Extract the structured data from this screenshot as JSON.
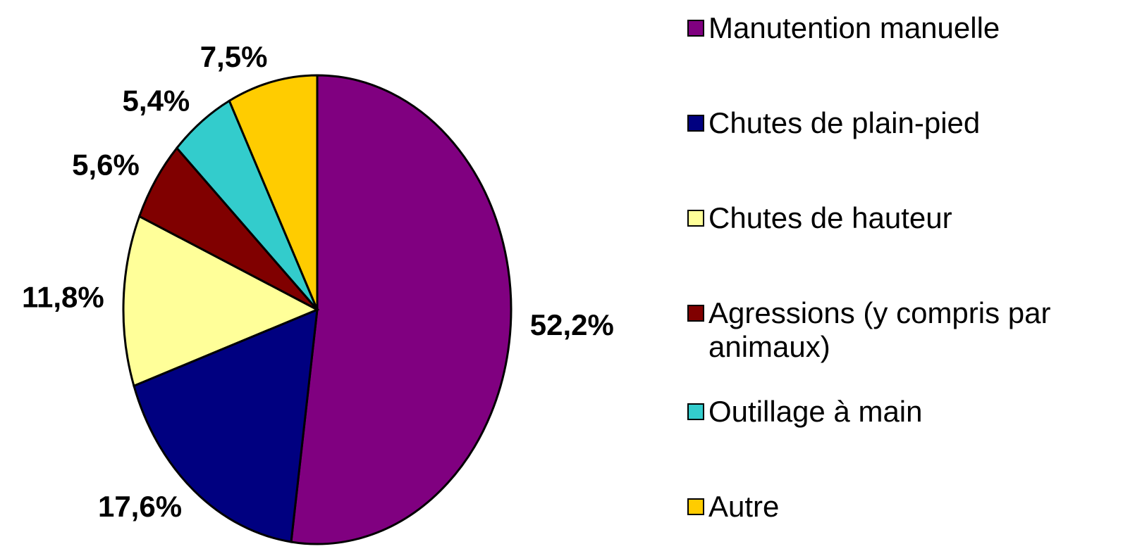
{
  "chart_data": {
    "type": "pie",
    "categories": [
      "Manutention manuelle",
      "Chutes de plain-pied",
      "Chutes de hauteur",
      "Agressions (y compris par animaux)",
      "Outillage à main",
      "Autre"
    ],
    "values": [
      52.2,
      17.6,
      11.8,
      5.6,
      5.4,
      7.5
    ],
    "value_labels": [
      "52,2%",
      "17,6%",
      "11,8%",
      "5,6%",
      "5,4%",
      "7,5%"
    ],
    "colors": [
      "#800080",
      "#000080",
      "#ffff99",
      "#800000",
      "#33cccc",
      "#ffcc00"
    ],
    "legend": "right"
  }
}
